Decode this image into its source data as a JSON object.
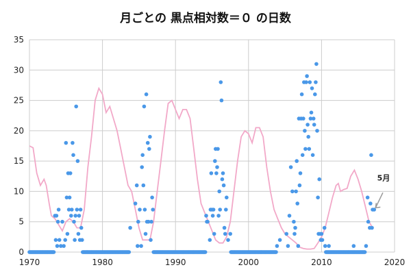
{
  "chart_data": {
    "type": "scatter",
    "title": "月ごとの 黒点相対数＝０ の日数",
    "xlabel": "",
    "ylabel": "",
    "xlim": [
      1970,
      2020
    ],
    "ylim": [
      0,
      35
    ],
    "x_ticks": [
      1970,
      1980,
      1990,
      2000,
      2010,
      2020
    ],
    "y_ticks": [
      0,
      5,
      10,
      15,
      20,
      25,
      30,
      35
    ],
    "grid": true,
    "legend": "none",
    "annotation": {
      "text": "5月",
      "x": 2017.4,
      "y": 7.3
    },
    "colors": {
      "points": "#4a98e8",
      "line": "#f2a8c8",
      "grid": "#cccccc"
    },
    "series": [
      {
        "type": "scatter",
        "points": [
          [
            1973.5,
            6
          ],
          [
            1973.6,
            2
          ],
          [
            1973.7,
            6
          ],
          [
            1973.8,
            1
          ],
          [
            1973.9,
            5
          ],
          [
            1974.0,
            7
          ],
          [
            1974.1,
            2
          ],
          [
            1974.3,
            1
          ],
          [
            1974.5,
            5
          ],
          [
            1974.7,
            1
          ],
          [
            1974.9,
            2
          ],
          [
            1975.0,
            18
          ],
          [
            1975.1,
            9
          ],
          [
            1975.2,
            3
          ],
          [
            1975.3,
            13
          ],
          [
            1975.4,
            7
          ],
          [
            1975.5,
            9
          ],
          [
            1975.6,
            13
          ],
          [
            1975.7,
            6
          ],
          [
            1975.8,
            7
          ],
          [
            1975.9,
            18
          ],
          [
            1976.0,
            16
          ],
          [
            1976.1,
            5
          ],
          [
            1976.2,
            2
          ],
          [
            1976.3,
            6
          ],
          [
            1976.4,
            24
          ],
          [
            1976.5,
            7
          ],
          [
            1976.6,
            15
          ],
          [
            1976.7,
            3
          ],
          [
            1976.8,
            6
          ],
          [
            1976.9,
            2
          ],
          [
            1977.0,
            7
          ],
          [
            1977.1,
            4
          ],
          [
            1977.2,
            2
          ],
          [
            1983.8,
            4
          ],
          [
            1984.5,
            8
          ],
          [
            1984.7,
            11
          ],
          [
            1984.8,
            1
          ],
          [
            1984.9,
            5
          ],
          [
            1985.1,
            7
          ],
          [
            1985.3,
            1
          ],
          [
            1985.4,
            14
          ],
          [
            1985.5,
            16
          ],
          [
            1985.6,
            11
          ],
          [
            1985.7,
            24
          ],
          [
            1985.8,
            7
          ],
          [
            1985.9,
            3
          ],
          [
            1986.0,
            26
          ],
          [
            1986.1,
            5
          ],
          [
            1986.2,
            18
          ],
          [
            1986.3,
            5
          ],
          [
            1986.4,
            17
          ],
          [
            1986.5,
            19
          ],
          [
            1986.6,
            2
          ],
          [
            1986.7,
            5
          ],
          [
            1986.8,
            9
          ],
          [
            1986.9,
            7
          ],
          [
            1994.2,
            6
          ],
          [
            1994.3,
            5
          ],
          [
            1994.4,
            5
          ],
          [
            1994.7,
            2
          ],
          [
            1994.8,
            7
          ],
          [
            1994.9,
            13
          ],
          [
            1995.0,
            7
          ],
          [
            1995.1,
            6
          ],
          [
            1995.2,
            7
          ],
          [
            1995.3,
            3
          ],
          [
            1995.4,
            15
          ],
          [
            1995.5,
            17
          ],
          [
            1995.6,
            13
          ],
          [
            1995.7,
            14
          ],
          [
            1995.8,
            17
          ],
          [
            1995.9,
            6
          ],
          [
            1996.0,
            10
          ],
          [
            1996.1,
            7
          ],
          [
            1996.2,
            28
          ],
          [
            1996.3,
            25
          ],
          [
            1996.4,
            12
          ],
          [
            1996.5,
            13
          ],
          [
            1996.6,
            11
          ],
          [
            1996.7,
            4
          ],
          [
            1996.8,
            3
          ],
          [
            1996.9,
            7
          ],
          [
            1997.0,
            9
          ],
          [
            1997.2,
            2
          ],
          [
            1997.5,
            3
          ],
          [
            2003.9,
            1
          ],
          [
            2004.3,
            2
          ],
          [
            2005.2,
            3
          ],
          [
            2005.4,
            1
          ],
          [
            2005.6,
            6
          ],
          [
            2005.8,
            14
          ],
          [
            2006.0,
            10
          ],
          [
            2006.2,
            5
          ],
          [
            2006.3,
            3
          ],
          [
            2006.4,
            4
          ],
          [
            2006.5,
            10
          ],
          [
            2006.6,
            15
          ],
          [
            2006.7,
            8
          ],
          [
            2006.8,
            1
          ],
          [
            2006.9,
            22
          ],
          [
            2007.0,
            11
          ],
          [
            2007.1,
            13
          ],
          [
            2007.2,
            22
          ],
          [
            2007.3,
            26
          ],
          [
            2007.4,
            16
          ],
          [
            2007.5,
            22
          ],
          [
            2007.6,
            28
          ],
          [
            2007.7,
            20
          ],
          [
            2007.8,
            17
          ],
          [
            2007.9,
            28
          ],
          [
            2008.0,
            29
          ],
          [
            2008.1,
            21
          ],
          [
            2008.2,
            19
          ],
          [
            2008.3,
            17
          ],
          [
            2008.4,
            28
          ],
          [
            2008.5,
            22
          ],
          [
            2008.6,
            23
          ],
          [
            2008.7,
            27
          ],
          [
            2008.8,
            16
          ],
          [
            2008.9,
            22
          ],
          [
            2009.0,
            21
          ],
          [
            2009.1,
            26
          ],
          [
            2009.2,
            28
          ],
          [
            2009.3,
            31
          ],
          [
            2009.4,
            20
          ],
          [
            2009.5,
            9
          ],
          [
            2009.6,
            3
          ],
          [
            2009.7,
            12
          ],
          [
            2009.8,
            3
          ],
          [
            2009.9,
            2
          ],
          [
            2010.0,
            3
          ],
          [
            2010.1,
            2
          ],
          [
            2010.4,
            4
          ],
          [
            2010.5,
            1
          ],
          [
            2011.0,
            1
          ],
          [
            2014.4,
            1
          ],
          [
            2016.1,
            1
          ],
          [
            2016.3,
            9
          ],
          [
            2016.4,
            5
          ],
          [
            2016.6,
            4
          ],
          [
            2016.7,
            8
          ],
          [
            2016.8,
            16
          ],
          [
            2016.9,
            4
          ],
          [
            2017.0,
            7
          ],
          [
            2017.2,
            7
          ]
        ],
        "zero_ranges": [
          [
            1970,
            1973.4
          ],
          [
            1977.3,
            1983.7
          ],
          [
            1987.0,
            1994.1
          ],
          [
            1997.6,
            2003.8
          ],
          [
            2010.6,
            2016.0
          ]
        ]
      },
      {
        "type": "line",
        "points": [
          [
            1970.0,
            17.5
          ],
          [
            1970.5,
            17.2
          ],
          [
            1971.0,
            13
          ],
          [
            1971.5,
            11
          ],
          [
            1972.0,
            12
          ],
          [
            1972.3,
            11
          ],
          [
            1972.7,
            8
          ],
          [
            1973.0,
            6
          ],
          [
            1973.5,
            5.5
          ],
          [
            1974.0,
            4.5
          ],
          [
            1974.5,
            3.5
          ],
          [
            1975.0,
            5
          ],
          [
            1975.5,
            5.5
          ],
          [
            1976.0,
            5
          ],
          [
            1976.5,
            4
          ],
          [
            1977.0,
            4
          ],
          [
            1977.5,
            7
          ],
          [
            1978.0,
            14
          ],
          [
            1978.5,
            19
          ],
          [
            1979.0,
            25
          ],
          [
            1979.5,
            27
          ],
          [
            1980.0,
            26
          ],
          [
            1980.5,
            23
          ],
          [
            1981.0,
            24
          ],
          [
            1981.5,
            22
          ],
          [
            1982.0,
            20
          ],
          [
            1982.5,
            17
          ],
          [
            1983.0,
            14
          ],
          [
            1983.5,
            11
          ],
          [
            1984.0,
            10
          ],
          [
            1984.5,
            7
          ],
          [
            1985.0,
            4
          ],
          [
            1985.5,
            2
          ],
          [
            1986.0,
            2
          ],
          [
            1986.5,
            2
          ],
          [
            1987.0,
            5
          ],
          [
            1987.5,
            10
          ],
          [
            1988.0,
            15
          ],
          [
            1988.5,
            20
          ],
          [
            1989.0,
            24.5
          ],
          [
            1989.5,
            25
          ],
          [
            1990.0,
            23.5
          ],
          [
            1990.5,
            22
          ],
          [
            1991.0,
            23.5
          ],
          [
            1991.5,
            23.5
          ],
          [
            1992.0,
            22
          ],
          [
            1992.5,
            17
          ],
          [
            1993.0,
            12
          ],
          [
            1993.5,
            8
          ],
          [
            1994.0,
            6.5
          ],
          [
            1994.5,
            5
          ],
          [
            1995.0,
            3.5
          ],
          [
            1995.5,
            2
          ],
          [
            1996.0,
            1.5
          ],
          [
            1996.5,
            1.5
          ],
          [
            1997.0,
            2.5
          ],
          [
            1997.5,
            5
          ],
          [
            1998.0,
            10
          ],
          [
            1998.5,
            15
          ],
          [
            1999.0,
            19
          ],
          [
            1999.5,
            20
          ],
          [
            2000.0,
            19.5
          ],
          [
            2000.5,
            18
          ],
          [
            2001.0,
            20.5
          ],
          [
            2001.5,
            20.5
          ],
          [
            2002.0,
            19
          ],
          [
            2002.5,
            14
          ],
          [
            2003.0,
            10
          ],
          [
            2003.5,
            7
          ],
          [
            2004.0,
            5.5
          ],
          [
            2004.5,
            4
          ],
          [
            2005.0,
            3
          ],
          [
            2005.5,
            2.5
          ],
          [
            2006.0,
            2
          ],
          [
            2006.5,
            1.5
          ],
          [
            2007.0,
            0.8
          ],
          [
            2007.5,
            0.6
          ],
          [
            2008.0,
            0.5
          ],
          [
            2008.5,
            0.5
          ],
          [
            2009.0,
            0.6
          ],
          [
            2009.5,
            1.5
          ],
          [
            2010.0,
            2.5
          ],
          [
            2010.5,
            4
          ],
          [
            2011.0,
            6.5
          ],
          [
            2011.5,
            9
          ],
          [
            2012.0,
            11
          ],
          [
            2012.3,
            11.3
          ],
          [
            2012.6,
            10
          ],
          [
            2013.0,
            10.3
          ],
          [
            2013.5,
            10.5
          ],
          [
            2014.0,
            12.5
          ],
          [
            2014.5,
            13.5
          ],
          [
            2015.0,
            12
          ],
          [
            2015.5,
            10
          ],
          [
            2016.0,
            7.5
          ],
          [
            2016.5,
            5
          ],
          [
            2017.0,
            4
          ]
        ]
      }
    ]
  }
}
